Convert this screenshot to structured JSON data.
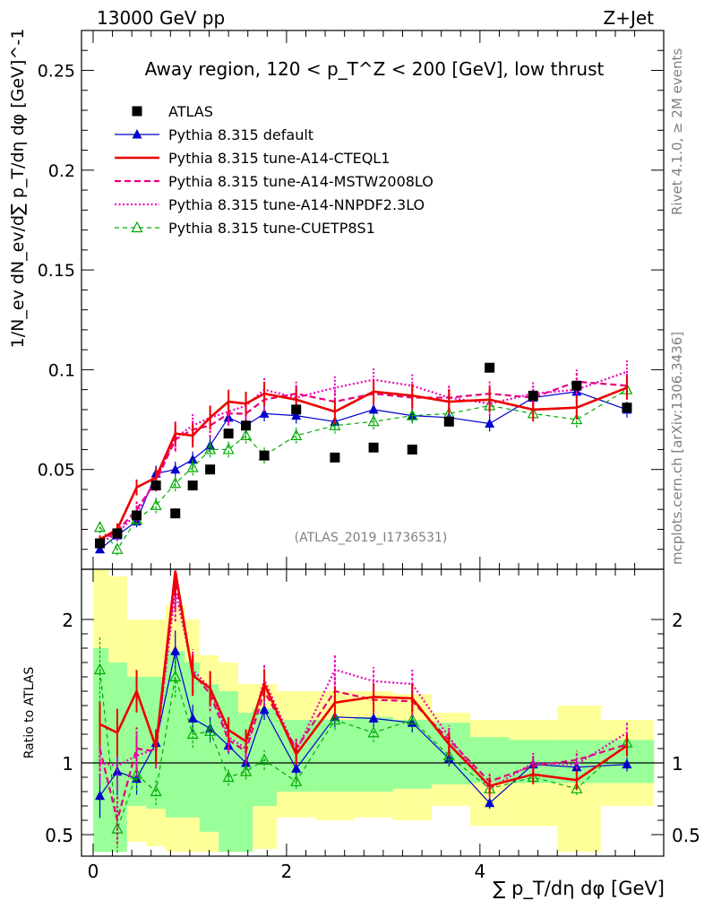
{
  "header": {
    "left": "13000 GeV pp",
    "right": "Z+Jet"
  },
  "side_text": {
    "rivet": "Rivet 4.1.0, ≥ 2M events",
    "mcplots": "mcplots.cern.ch [arXiv:1306.3436]"
  },
  "chart_data": {
    "type": "scatter",
    "title": "Away region, 120 < p_T^Z < 200 [GeV], low thrust",
    "watermark": "(ATLAS_2019_I1736531)",
    "xlabel": "∑ p_T/dη dφ [GeV]",
    "ylabel": "1/N_ev dN_ev/d∑ p_T/dη dφ [GeV]^-1",
    "ratio_ylabel": "Ratio to ATLAS",
    "xlim": [
      -0.12,
      5.9
    ],
    "ylim": [
      0,
      0.27
    ],
    "ratio_ylim": [
      0.35,
      2.35
    ],
    "xticks": [
      0,
      2,
      4
    ],
    "yticks": [
      0.05,
      0.1,
      0.15,
      0.2,
      0.25
    ],
    "ytick_labels": [
      "0.05",
      "0.1",
      "0.15",
      "0.2",
      "0.25"
    ],
    "ratio_yticks": [
      0.5,
      1,
      2
    ],
    "x": [
      0.07,
      0.25,
      0.45,
      0.65,
      0.85,
      1.03,
      1.21,
      1.4,
      1.58,
      1.77,
      2.1,
      2.5,
      2.9,
      3.3,
      3.68,
      4.1,
      4.55,
      5.0,
      5.52
    ],
    "ratio_band_edges": [
      0.0,
      0.16,
      0.35,
      0.55,
      0.75,
      0.95,
      1.1,
      1.3,
      1.5,
      1.65,
      1.9,
      2.3,
      2.7,
      3.1,
      3.5,
      3.9,
      4.3,
      4.8,
      5.25,
      5.8
    ],
    "ratio_band_stat": [
      [
        0.38,
        1.8
      ],
      [
        0.38,
        1.7
      ],
      [
        0.7,
        1.6
      ],
      [
        0.68,
        1.6
      ],
      [
        0.62,
        1.78
      ],
      [
        0.62,
        1.7
      ],
      [
        0.52,
        1.55
      ],
      [
        0.38,
        1.5
      ],
      [
        0.38,
        1.35
      ],
      [
        0.7,
        1.38
      ],
      [
        0.8,
        1.3
      ],
      [
        0.8,
        1.3
      ],
      [
        0.8,
        1.32
      ],
      [
        0.82,
        1.3
      ],
      [
        0.85,
        1.28
      ],
      [
        0.86,
        1.18
      ],
      [
        0.86,
        1.16
      ],
      [
        0.86,
        1.16
      ],
      [
        0.86,
        1.16
      ]
    ],
    "ratio_band_total": [
      [
        0.38,
        2.35
      ],
      [
        0.38,
        2.3
      ],
      [
        0.45,
        2.0
      ],
      [
        0.42,
        2.0
      ],
      [
        0.38,
        2.1
      ],
      [
        0.38,
        2.0
      ],
      [
        0.38,
        1.75
      ],
      [
        0.38,
        1.7
      ],
      [
        0.38,
        1.55
      ],
      [
        0.4,
        1.55
      ],
      [
        0.62,
        1.5
      ],
      [
        0.6,
        1.5
      ],
      [
        0.62,
        1.5
      ],
      [
        0.6,
        1.48
      ],
      [
        0.7,
        1.35
      ],
      [
        0.56,
        1.3
      ],
      [
        0.56,
        1.3
      ],
      [
        0.38,
        1.4
      ],
      [
        0.7,
        1.3
      ]
    ],
    "series": [
      {
        "name": "ATLAS",
        "color": "#000000",
        "marker": "square",
        "line": "none",
        "has_errors": false,
        "values": [
          0.013,
          0.018,
          0.027,
          0.042,
          0.028,
          0.042,
          0.05,
          0.068,
          0.072,
          0.057,
          0.08,
          0.056,
          0.061,
          0.06,
          0.074,
          0.101,
          0.087,
          0.092,
          0.081
        ],
        "ratio": [
          1,
          1,
          1,
          1,
          1,
          1,
          1,
          1,
          1,
          1,
          1,
          1,
          1,
          1,
          1,
          1,
          1,
          1,
          1
        ]
      },
      {
        "name": "Pythia 8.315 default",
        "color": "#0000cc",
        "marker": "triangle-filled",
        "line": "solid-thin",
        "has_errors": true,
        "values": [
          0.01,
          0.017,
          0.024,
          0.048,
          0.05,
          0.055,
          0.062,
          0.076,
          0.072,
          0.078,
          0.077,
          0.074,
          0.08,
          0.077,
          0.076,
          0.073,
          0.086,
          0.089,
          0.08
        ],
        "errors": [
          0.002,
          0.003,
          0.003,
          0.004,
          0.004,
          0.004,
          0.004,
          0.004,
          0.004,
          0.004,
          0.004,
          0.004,
          0.004,
          0.004,
          0.004,
          0.004,
          0.004,
          0.004,
          0.004
        ],
        "ratio": [
          0.77,
          0.94,
          0.89,
          1.14,
          1.78,
          1.31,
          1.24,
          1.12,
          1.0,
          1.37,
          0.96,
          1.32,
          1.31,
          1.28,
          1.03,
          0.72,
          0.99,
          0.97,
          0.99
        ]
      },
      {
        "name": "Pythia 8.315 tune-A14-CTEQL1",
        "color": "#ee0000",
        "marker": "none",
        "line": "solid-thick",
        "has_errors": true,
        "values": [
          0.015,
          0.02,
          0.041,
          0.046,
          0.068,
          0.067,
          0.076,
          0.084,
          0.083,
          0.088,
          0.085,
          0.079,
          0.089,
          0.087,
          0.084,
          0.085,
          0.08,
          0.081,
          0.091
        ],
        "errors": [
          0.002,
          0.003,
          0.004,
          0.005,
          0.006,
          0.006,
          0.006,
          0.006,
          0.006,
          0.006,
          0.006,
          0.006,
          0.006,
          0.006,
          0.006,
          0.006,
          0.006,
          0.006,
          0.006
        ],
        "ratio": [
          1.27,
          1.21,
          1.5,
          1.11,
          2.37,
          1.61,
          1.52,
          1.23,
          1.15,
          1.55,
          1.06,
          1.42,
          1.46,
          1.45,
          1.13,
          0.84,
          0.92,
          0.88,
          1.12
        ]
      },
      {
        "name": "Pythia 8.315 tune-A14-MSTW2008LO",
        "color": "#e5007a",
        "marker": "none",
        "line": "dashed",
        "has_errors": true,
        "values": [
          0.014,
          0.019,
          0.03,
          0.044,
          0.065,
          0.07,
          0.072,
          0.078,
          0.078,
          0.085,
          0.088,
          0.084,
          0.088,
          0.086,
          0.086,
          0.088,
          0.086,
          0.094,
          0.092
        ],
        "errors": [
          0.002,
          0.003,
          0.004,
          0.005,
          0.006,
          0.006,
          0.006,
          0.006,
          0.006,
          0.006,
          0.006,
          0.006,
          0.006,
          0.006,
          0.006,
          0.006,
          0.006,
          0.006,
          0.006
        ],
        "ratio": [
          1.1,
          0.6,
          1.1,
          1.08,
          2.28,
          1.63,
          1.48,
          1.16,
          1.08,
          1.5,
          1.1,
          1.5,
          1.44,
          1.43,
          1.16,
          0.87,
          0.98,
          1.02,
          1.13
        ]
      },
      {
        "name": "Pythia 8.315 tune-A14-NNPDF2.3LO",
        "color": "#ee00bb",
        "marker": "none",
        "line": "dotted",
        "has_errors": true,
        "values": [
          0.013,
          0.018,
          0.028,
          0.045,
          0.066,
          0.072,
          0.076,
          0.079,
          0.082,
          0.09,
          0.086,
          0.091,
          0.095,
          0.092,
          0.086,
          0.083,
          0.088,
          0.09,
          0.099
        ],
        "errors": [
          0.002,
          0.003,
          0.004,
          0.005,
          0.006,
          0.006,
          0.006,
          0.006,
          0.006,
          0.006,
          0.006,
          0.006,
          0.006,
          0.006,
          0.006,
          0.006,
          0.006,
          0.006,
          0.006
        ],
        "ratio": [
          1.0,
          0.98,
          1.05,
          1.1,
          2.2,
          1.65,
          1.52,
          1.18,
          1.1,
          1.58,
          1.08,
          1.65,
          1.57,
          1.55,
          1.18,
          0.82,
          1.0,
          0.99,
          1.21
        ]
      },
      {
        "name": "Pythia 8.315 tune-CUETP8S1",
        "color": "#00aa00",
        "marker": "triangle-open",
        "line": "dashed-thin",
        "has_errors": true,
        "values": [
          0.021,
          0.01,
          0.025,
          0.032,
          0.043,
          0.051,
          0.06,
          0.06,
          0.067,
          0.057,
          0.067,
          0.072,
          0.074,
          0.077,
          0.078,
          0.082,
          0.078,
          0.075,
          0.09
        ],
        "errors": [
          0.003,
          0.003,
          0.003,
          0.004,
          0.004,
          0.004,
          0.004,
          0.004,
          0.004,
          0.004,
          0.004,
          0.004,
          0.004,
          0.004,
          0.004,
          0.004,
          0.004,
          0.004,
          0.004
        ],
        "ratio": [
          1.65,
          0.54,
          0.92,
          0.8,
          1.6,
          1.2,
          1.22,
          0.9,
          0.94,
          1.02,
          0.87,
          1.3,
          1.21,
          1.3,
          1.05,
          0.82,
          0.9,
          0.82,
          1.14
        ]
      }
    ]
  }
}
